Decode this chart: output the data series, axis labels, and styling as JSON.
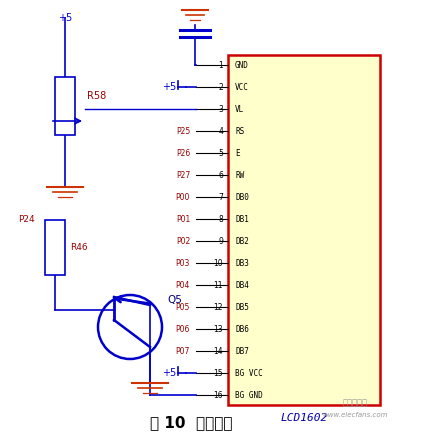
{
  "bg_color": "#ffffff",
  "lcd_fill": "#ffffcc",
  "lcd_edge": "#cc0000",
  "lcd_label": "LCD1602",
  "lcd_pins_left": [
    "GND",
    "VCC",
    "VL",
    "RS",
    "E",
    "RW",
    "DB0",
    "DB1",
    "DB2",
    "DB3",
    "DB4",
    "DB5",
    "DB6",
    "DB7",
    "BG VCC",
    "BG GND"
  ],
  "lcd_pin_nums": [
    "1",
    "2",
    "3",
    "4",
    "5",
    "6",
    "7",
    "8",
    "9",
    "10",
    "11",
    "12",
    "13",
    "14",
    "15",
    "16"
  ],
  "title": "图 10  显示电路",
  "watermark": "www.elecfans.com",
  "logo_text": "电子发烧友",
  "port_labels_red": [
    "P25",
    "P26",
    "P27",
    "P00",
    "P01",
    "P02",
    "P03",
    "P04",
    "P05",
    "P06",
    "P07"
  ],
  "vcc_label": "+5",
  "r58_label": "R58",
  "r46_label": "R46",
  "p24_label": "P24",
  "q5_label": "Q5",
  "blue": "#0000cc",
  "darkred": "#990000",
  "black": "#000000",
  "red_gnd": "#cc3300"
}
